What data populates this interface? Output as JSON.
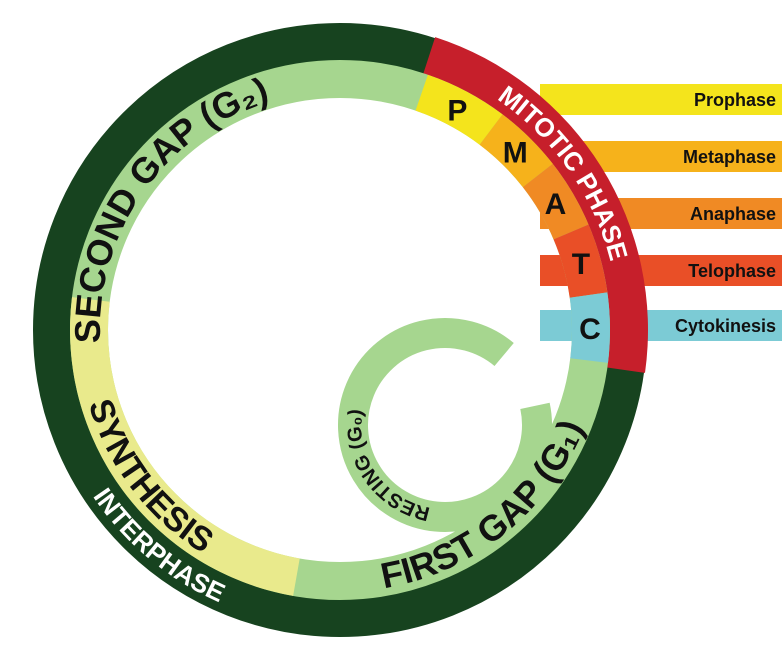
{
  "mitotic_phase": {
    "title": "MITOTIC PHASE",
    "stages": [
      {
        "letter": "P",
        "name": "Prophase"
      },
      {
        "letter": "M",
        "name": "Metaphase"
      },
      {
        "letter": "A",
        "name": "Anaphase"
      },
      {
        "letter": "T",
        "name": "Telophase"
      },
      {
        "letter": "C",
        "name": "Cytokinesis"
      }
    ]
  },
  "interphase": {
    "title": "INTERPHASE",
    "stages": [
      "SECOND GAP (G₂)",
      "SYNTHESIS",
      "FIRST GAP (G₁)"
    ]
  },
  "resting": "RESTING (G₀)"
}
